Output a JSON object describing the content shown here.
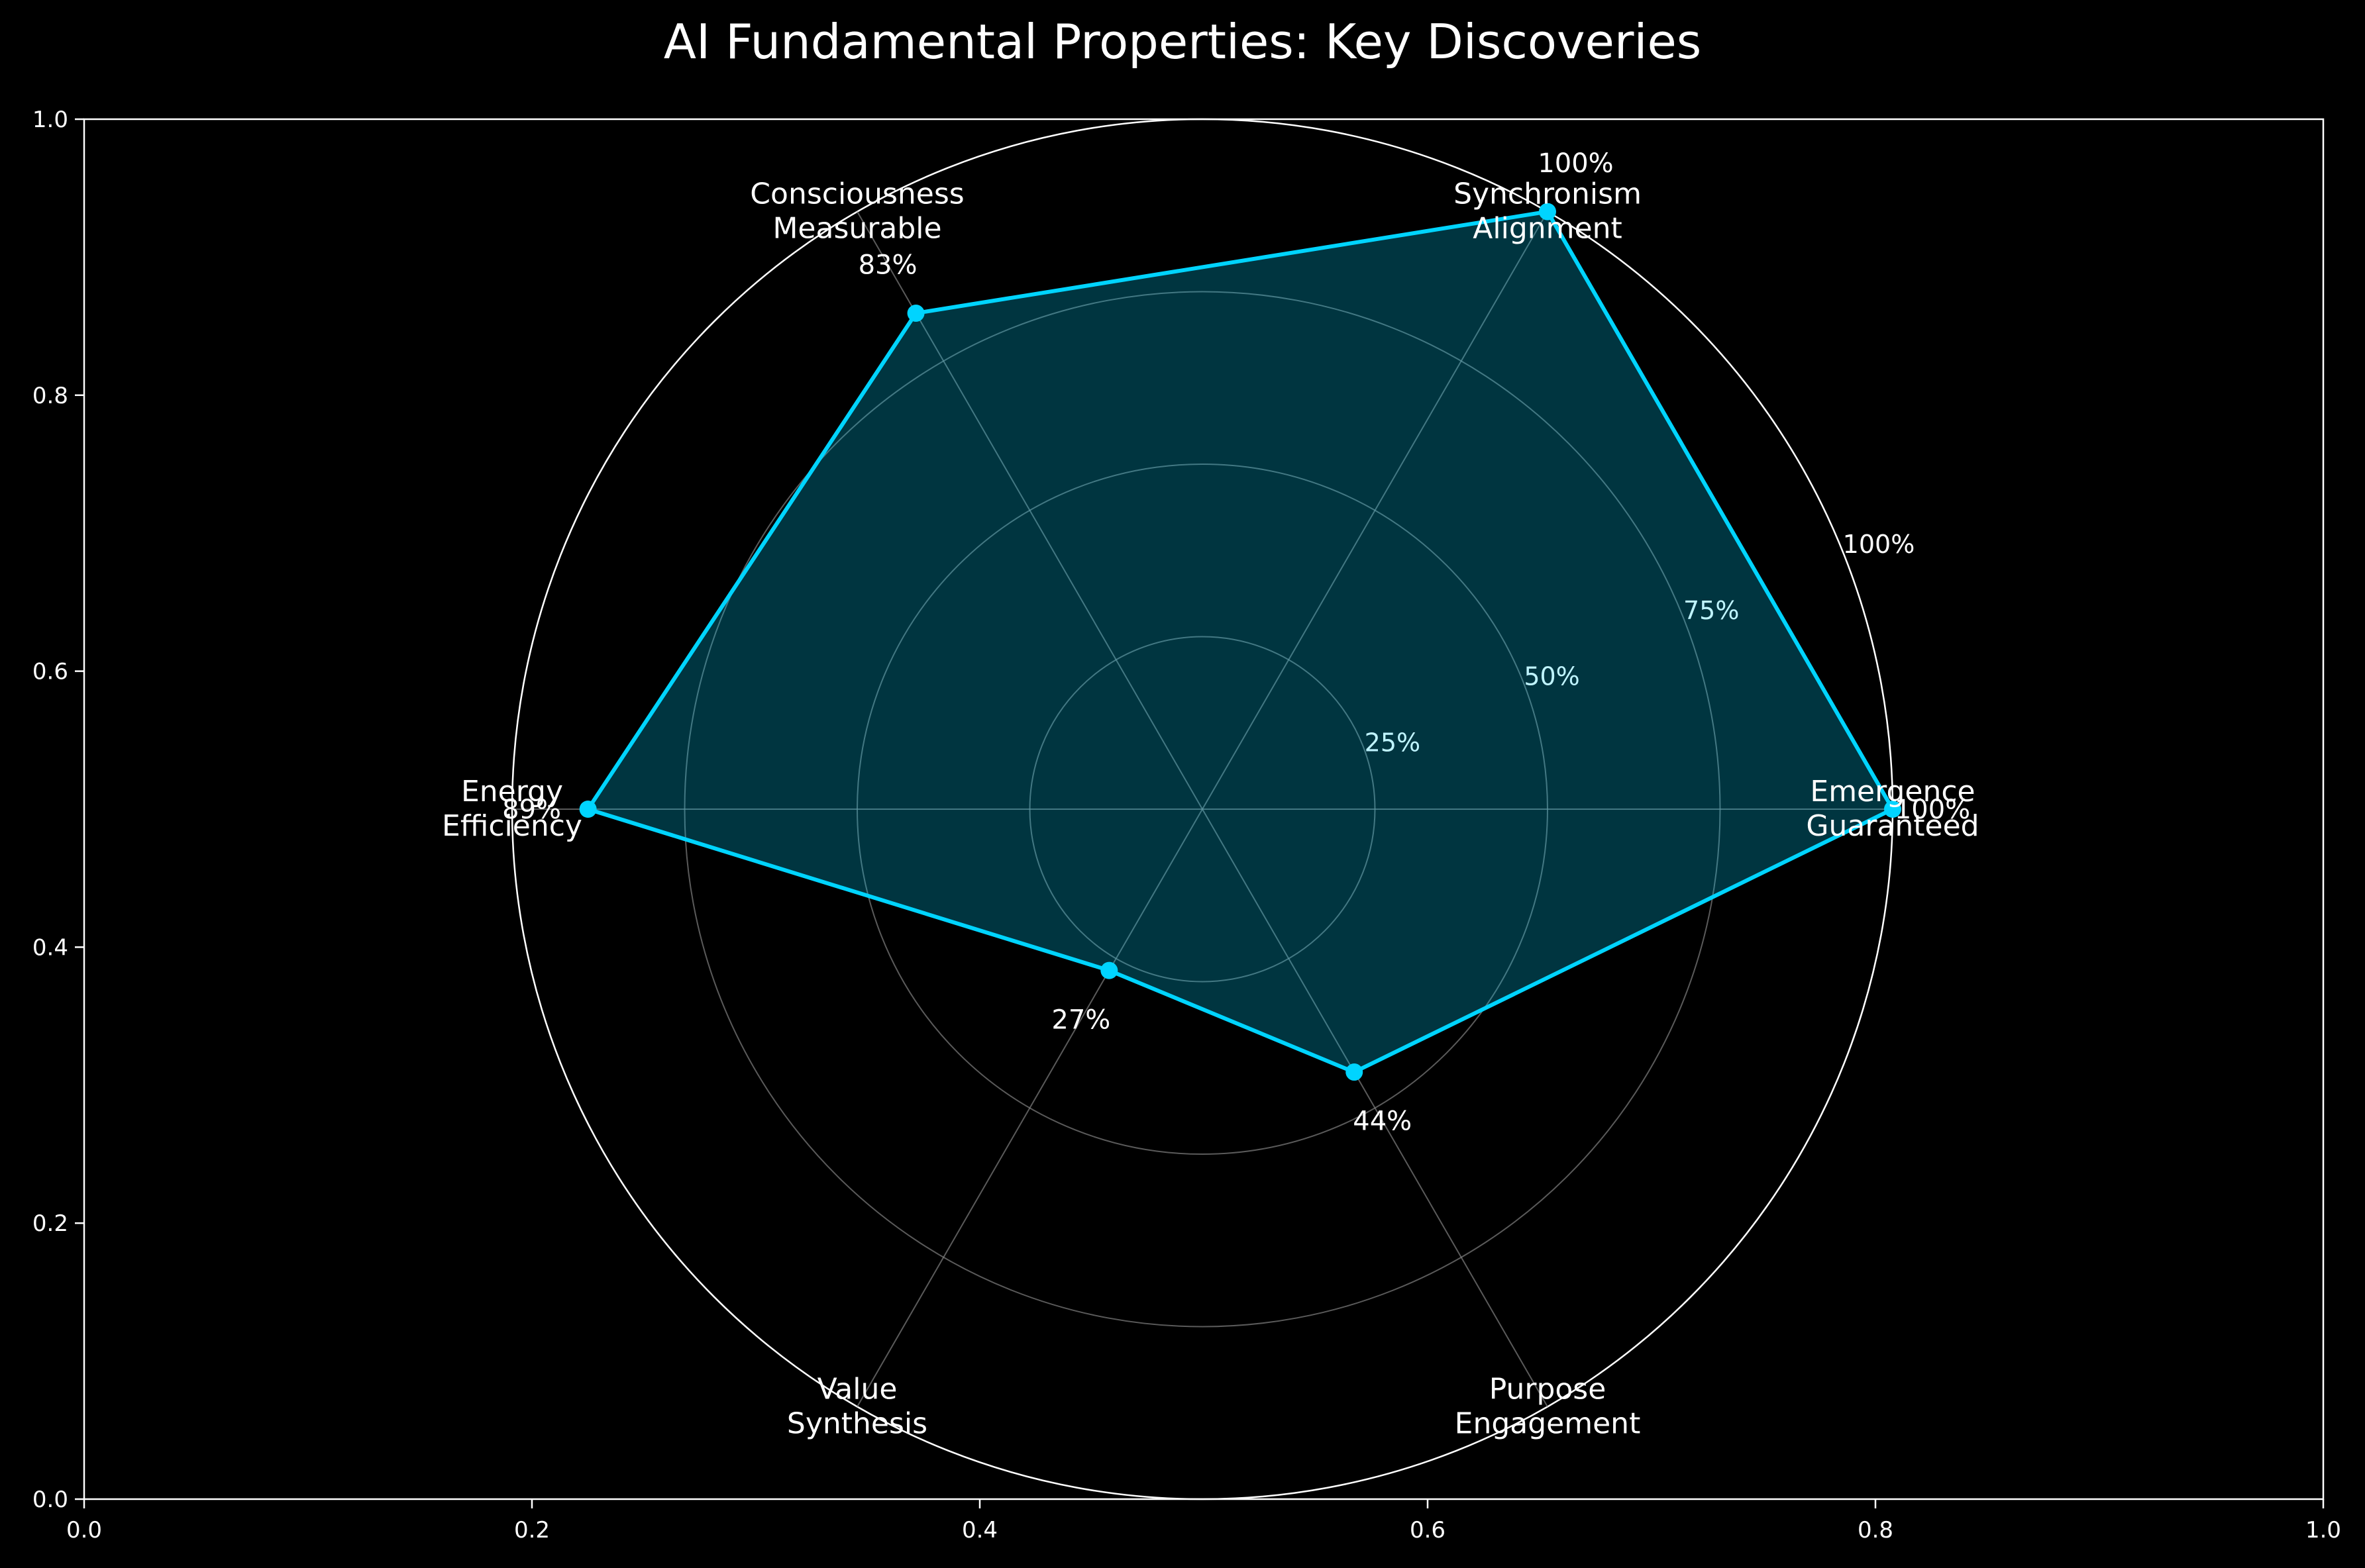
{
  "chart_data": {
    "type": "radar",
    "title": "AI Fundamental Properties: Key Discoveries",
    "categories": [
      "Emergence\nGuaranteed",
      "Synchronism\nAlignment",
      "Consciousness\nMeasurable",
      "Energy\nEfficiency",
      "Value\nSynthesis",
      "Purpose\nEngagement"
    ],
    "series": [
      {
        "values": [
          100,
          100,
          83,
          89,
          27,
          44
        ]
      }
    ],
    "value_labels": [
      "100%",
      "100%",
      "83%",
      "89%",
      "27%",
      "44%"
    ],
    "rlim": [
      0,
      100
    ],
    "radial_ticks": [
      25,
      50,
      75,
      100
    ],
    "radial_tick_labels": [
      "25%",
      "50%",
      "75%",
      "100%"
    ],
    "outer_axes": {
      "x_ticks": [
        "0.0",
        "0.2",
        "0.4",
        "0.6",
        "0.8",
        "1.0"
      ],
      "y_ticks": [
        "0.0",
        "0.2",
        "0.4",
        "0.6",
        "0.8",
        "1.0"
      ],
      "xlim": [
        0,
        1
      ],
      "ylim": [
        0,
        1
      ]
    },
    "colors": {
      "background": "#000000",
      "series_line": "#00d4ff",
      "series_fill": "#00d4ff",
      "grid": "#808080",
      "text": "#ffffff"
    },
    "grid": true
  }
}
